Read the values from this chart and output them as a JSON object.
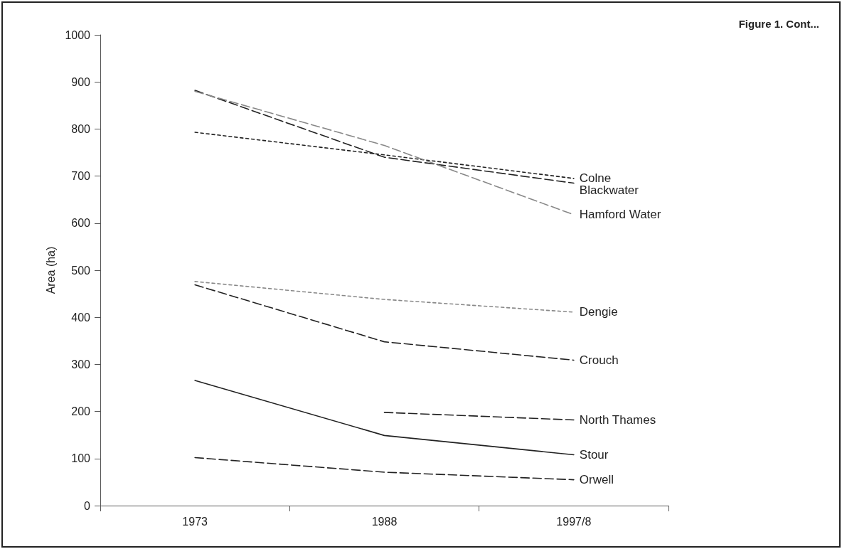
{
  "chart_data": {
    "type": "line",
    "ylabel": "Area (ha)",
    "annotations": [
      "Figure 1. Cont..."
    ],
    "categories": [
      "1973",
      "1988",
      "1997/8"
    ],
    "ylim": [
      0,
      1000
    ],
    "yticks": [
      0,
      100,
      200,
      300,
      400,
      500,
      600,
      700,
      800,
      900,
      1000
    ],
    "grid": false,
    "legend": false,
    "marker": "none",
    "series": [
      {
        "name": "Colne",
        "color": "#222222",
        "line_style": "dotted",
        "values": [
          793,
          745,
          695
        ]
      },
      {
        "name": "Blackwater",
        "color": "#222222",
        "line_style": "dashed",
        "values": [
          882,
          740,
          685
        ]
      },
      {
        "name": "Hamford Water",
        "color": "#888888",
        "line_style": "dashed",
        "values": [
          880,
          765,
          618
        ]
      },
      {
        "name": "Dengie",
        "color": "#888888",
        "line_style": "dotted",
        "values": [
          476,
          438,
          411
        ]
      },
      {
        "name": "Crouch",
        "color": "#222222",
        "line_style": "dashed",
        "values": [
          469,
          348,
          309
        ]
      },
      {
        "name": "North Thames",
        "color": "#222222",
        "line_style": "dashed",
        "values": [
          null,
          198,
          182
        ]
      },
      {
        "name": "Stour",
        "color": "#222222",
        "line_style": "solid",
        "values": [
          266,
          149,
          108
        ]
      },
      {
        "name": "Orwell",
        "color": "#222222",
        "line_style": "dashed",
        "values": [
          102,
          71,
          55
        ]
      }
    ]
  }
}
